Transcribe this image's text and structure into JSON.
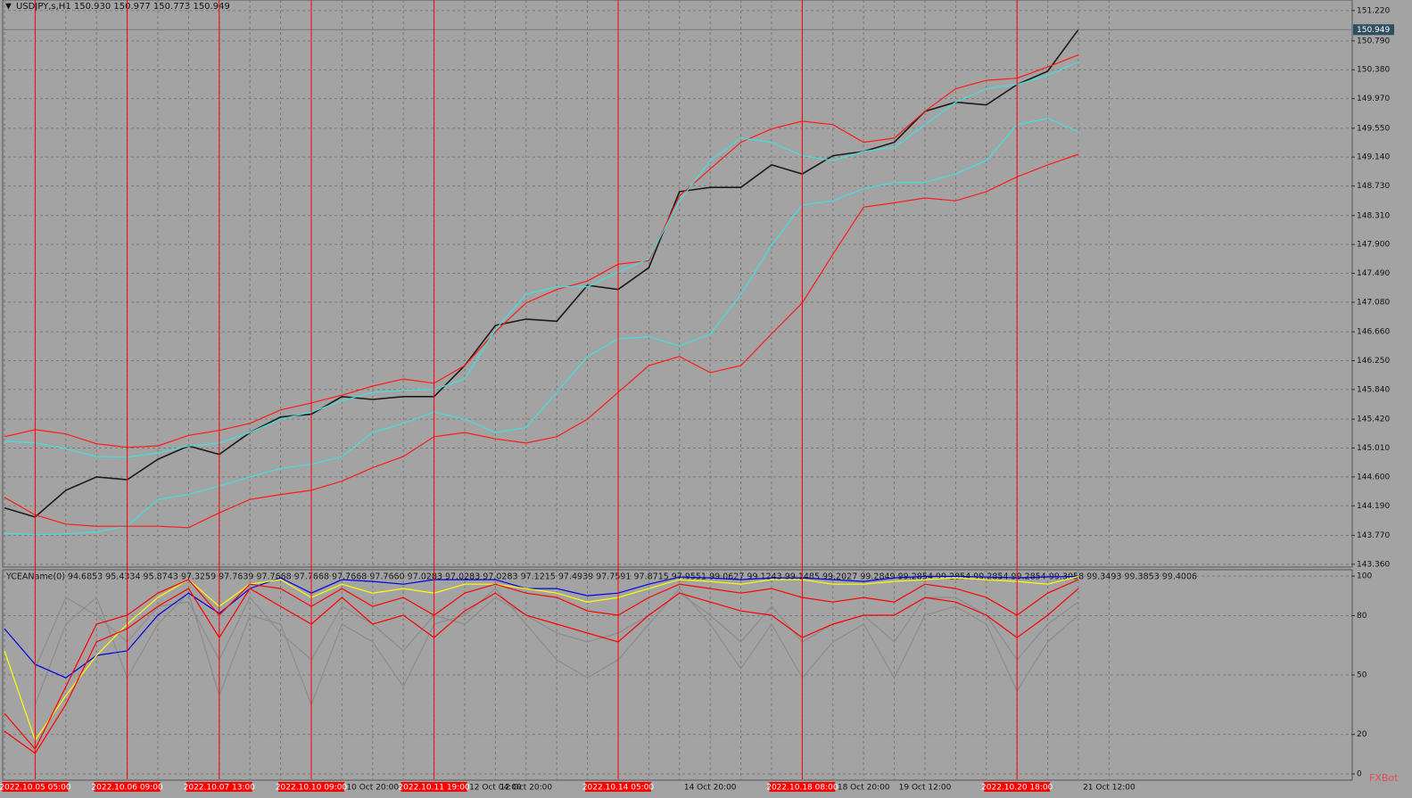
{
  "chart_data": [
    {
      "type": "line",
      "title": "USDJPY,s,H1  150.930 150.977 150.773 150.949",
      "categories": [
        null,
        "2022.10.05 05:00",
        null,
        null,
        "2022.10.06 09:00",
        null,
        null,
        "2022.10.07 13:00",
        null,
        null,
        "2022.10.10 09:00",
        null,
        "10 Oct 20:00",
        null,
        "2022.10.11 19:00",
        null,
        "12 Oct 04:00",
        "12 Oct 20:00",
        null,
        null,
        "2022.10.14 05:00",
        null,
        null,
        "14 Oct 20:00",
        null,
        null,
        "2022.10.18 08:00",
        null,
        "18 Oct 20:00",
        null,
        "19 Oct 12:00",
        null,
        null,
        "2022.10.20 18:00",
        null,
        null,
        "21 Oct 12:00"
      ],
      "vlines": [
        "2022.10.05 05:00",
        "2022.10.06 09:00",
        "2022.10.07 13:00",
        "2022.10.10 09:00",
        "2022.10.11 19:00",
        "2022.10.14 05:00",
        "2022.10.18 08:00",
        "2022.10.20 18:00"
      ],
      "vline_color": "#ff0000",
      "series": [
        {
          "color": "#1a1a1a",
          "values": [
            144.16,
            144.03,
            144.41,
            144.6,
            144.56,
            144.85,
            145.04,
            144.92,
            145.23,
            145.45,
            145.49,
            145.74,
            145.7,
            145.74,
            145.74,
            146.18,
            146.75,
            146.84,
            146.81,
            147.32,
            147.26,
            147.57,
            148.65,
            148.71,
            148.71,
            149.03,
            148.9,
            149.16,
            149.22,
            149.35,
            149.79,
            149.92,
            149.88,
            150.17,
            150.36,
            150.95,
            null
          ]
        },
        {
          "color": "#ff1a1a",
          "values": [
            145.17,
            145.27,
            145.21,
            145.07,
            145.02,
            145.04,
            145.19,
            145.26,
            145.36,
            145.55,
            145.65,
            145.76,
            145.89,
            145.99,
            145.93,
            146.18,
            146.66,
            147.07,
            147.26,
            147.38,
            147.62,
            147.67,
            148.59,
            148.97,
            149.35,
            149.54,
            149.65,
            149.6,
            149.35,
            149.41,
            149.79,
            150.11,
            150.23,
            150.26,
            150.42,
            150.59,
            null
          ]
        },
        {
          "color": "#40e0e0",
          "values": [
            145.11,
            145.08,
            145.0,
            144.89,
            144.88,
            144.94,
            145.04,
            145.08,
            145.23,
            145.42,
            145.52,
            145.68,
            145.8,
            145.83,
            145.84,
            145.99,
            146.69,
            147.19,
            147.3,
            147.3,
            147.51,
            147.7,
            148.52,
            149.09,
            149.41,
            149.35,
            149.16,
            149.09,
            149.22,
            149.28,
            149.6,
            149.92,
            150.11,
            150.17,
            150.3,
            150.49,
            null
          ]
        },
        {
          "color": "#40e0e0",
          "values": [
            143.8,
            143.78,
            143.79,
            143.82,
            143.9,
            144.28,
            144.35,
            144.47,
            144.6,
            144.72,
            144.78,
            144.89,
            145.23,
            145.36,
            145.52,
            145.42,
            145.23,
            145.3,
            145.8,
            146.31,
            146.56,
            146.59,
            146.46,
            146.63,
            147.19,
            147.89,
            148.46,
            148.52,
            148.69,
            148.78,
            148.78,
            148.9,
            149.09,
            149.6,
            149.69,
            149.5,
            null
          ]
        },
        {
          "color": "#ff1a1a",
          "values": [
            144.31,
            144.06,
            143.93,
            143.9,
            143.9,
            143.9,
            143.88,
            144.09,
            144.28,
            144.35,
            144.41,
            144.54,
            144.73,
            144.89,
            145.17,
            145.23,
            145.14,
            145.08,
            145.17,
            145.42,
            145.8,
            146.18,
            146.31,
            146.08,
            146.18,
            146.63,
            147.07,
            147.76,
            148.43,
            148.49,
            148.56,
            148.52,
            148.65,
            148.86,
            149.03,
            149.18,
            null
          ]
        }
      ],
      "ylim": [
        143.32,
        151.37
      ],
      "yticks": [
        {
          "value": 151.22,
          "label": "151.220"
        },
        {
          "value": 150.79,
          "label": "150.790"
        },
        {
          "value": 150.38,
          "label": "150.380"
        },
        {
          "value": 149.97,
          "label": "149.970"
        },
        {
          "value": 149.55,
          "label": "149.550"
        },
        {
          "value": 149.14,
          "label": "149.140"
        },
        {
          "value": 148.73,
          "label": "148.730"
        },
        {
          "value": 148.31,
          "label": "148.310"
        },
        {
          "value": 147.9,
          "label": "147.900"
        },
        {
          "value": 147.49,
          "label": "147.490"
        },
        {
          "value": 147.08,
          "label": "147.080"
        },
        {
          "value": 146.66,
          "label": "146.660"
        },
        {
          "value": 146.25,
          "label": "146.250"
        },
        {
          "value": 145.84,
          "label": "145.840"
        },
        {
          "value": 145.42,
          "label": "145.420"
        },
        {
          "value": 145.01,
          "label": "145.010"
        },
        {
          "value": 144.6,
          "label": "144.600"
        },
        {
          "value": 144.19,
          "label": "144.190"
        },
        {
          "value": 143.77,
          "label": "143.770"
        },
        {
          "value": 143.36,
          "label": "143.360"
        }
      ],
      "current_price": {
        "value": 150.949,
        "label": "150.949"
      },
      "grid": true
    },
    {
      "type": "line",
      "title": "YCEAName(0) 94.6853 95.4334 95.8743 97.3259 97.7639 97.7668 97.7668 97.7668 97.7660 97.0283 97.0283 97.0283 97.1215 97.4939 97.7591 97.8715 97.9551 99.0627 99.1243 99.1485 99.2027 99.2849 99.2854 99.2854 99.2854 99.2854 99.3058 99.3493 99.3853 99.4006",
      "series": [
        {
          "color": "#8c8c8c",
          "values": [
            null,
            35.1,
            75.7,
            89.2,
            48.6,
            75.7,
            91.4,
            39.6,
            80.2,
            75.7,
            35.1,
            75.7,
            66.7,
            44.1,
            75.7,
            80.2,
            93.7,
            75.7,
            57.7,
            48.6,
            57.7,
            75.7,
            93.7,
            75.7,
            53.2,
            75.7,
            48.6,
            66.7,
            75.7,
            48.6,
            80.2,
            84.7,
            75.7,
            41.9,
            66.7,
            80.2,
            null
          ]
        },
        {
          "color": "#8c8c8c",
          "values": [
            null,
            53.2,
            89.2,
            80.2,
            66.7,
            84.7,
            86.9,
            57.7,
            89.2,
            71.2,
            57.7,
            84.7,
            75.7,
            62.2,
            80.2,
            75.7,
            89.2,
            80.2,
            71.2,
            66.7,
            71.2,
            80.2,
            91.4,
            80.2,
            66.7,
            84.7,
            66.7,
            75.7,
            80.2,
            66.7,
            89.2,
            89.2,
            80.2,
            57.7,
            75.7,
            86.9,
            null
          ]
        },
        {
          "color": "#0000e0",
          "values": [
            73.4,
            55.4,
            48.6,
            59.9,
            62.2,
            80.2,
            91.4,
            81.1,
            93.7,
            99.1,
            91.4,
            98.2,
            97.3,
            95.9,
            98.2,
            98.2,
            98.2,
            93.7,
            93.7,
            90.1,
            91.4,
            95.9,
            99.5,
            99.1,
            98.2,
            99.1,
            99.1,
            98.2,
            97.3,
            99.1,
            99.8,
            99.9,
            99.5,
            99.1,
            99.6,
            99.8,
            null
          ]
        },
        {
          "color": "#ffff00",
          "values": [
            62.2,
            17.1,
            39.6,
            59.9,
            75.7,
            89.2,
            98.2,
            84.7,
            95.9,
            98.2,
            89.2,
            95.9,
            91.4,
            93.7,
            91.4,
            95.9,
            95.9,
            93.7,
            91.4,
            86.9,
            89.2,
            93.7,
            98.2,
            97.3,
            95.9,
            98.2,
            98.2,
            95.9,
            95.9,
            97.3,
            98.2,
            99.1,
            98.2,
            97.3,
            95.9,
            99.8,
            null
          ]
        },
        {
          "color": "#ff0000",
          "values": [
            30.6,
            12.6,
            44.1,
            75.7,
            80.2,
            91.4,
            98.2,
            80.2,
            95.9,
            93.7,
            84.7,
            93.7,
            84.7,
            89.2,
            80.2,
            91.4,
            95.9,
            91.4,
            89.2,
            82.4,
            80.2,
            89.2,
            95.9,
            93.7,
            91.4,
            93.7,
            89.2,
            86.9,
            89.2,
            86.9,
            95.9,
            93.7,
            89.2,
            80.2,
            91.4,
            98.2,
            null
          ]
        },
        {
          "color": "#ff0000",
          "values": [
            21.6,
            10.4,
            35.1,
            66.7,
            73.4,
            84.7,
            93.7,
            68.9,
            93.7,
            84.7,
            75.7,
            89.2,
            75.7,
            80.2,
            68.9,
            82.4,
            91.4,
            80.2,
            75.7,
            71.2,
            66.7,
            80.2,
            91.4,
            86.9,
            82.4,
            80.2,
            68.9,
            75.7,
            80.2,
            80.2,
            89.2,
            86.9,
            80.2,
            68.9,
            80.2,
            93.7,
            null
          ]
        }
      ],
      "ylim": [
        -2.7,
        103.2
      ],
      "yticks": [
        0,
        20,
        50,
        80,
        100
      ],
      "grid": true
    }
  ],
  "watermark": "FXBot"
}
